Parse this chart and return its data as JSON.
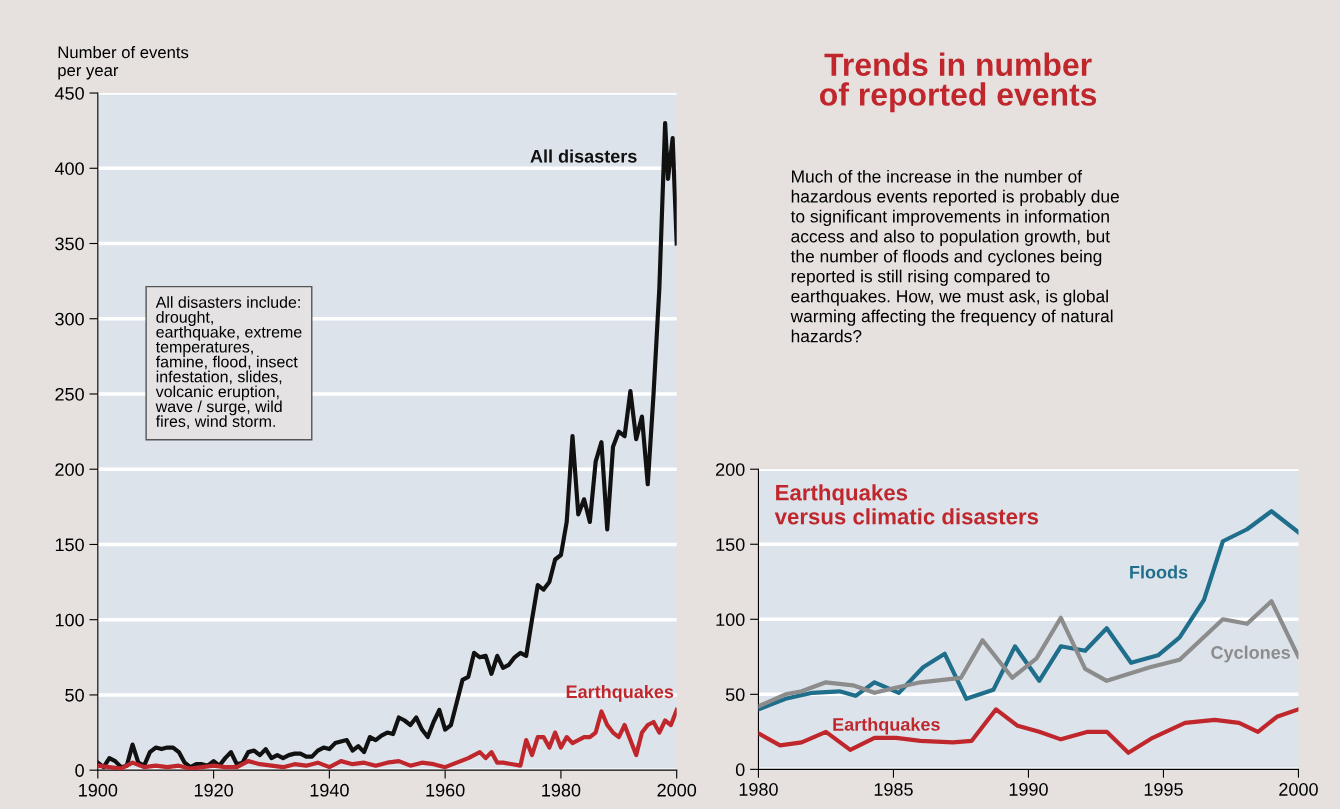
{
  "chart_data": [
    {
      "type": "line",
      "ylabel": "Number of events\nper year",
      "xlim": [
        1900,
        2000
      ],
      "xticks": [
        1900,
        1920,
        1940,
        1960,
        1980,
        2000
      ],
      "ylim": [
        0,
        450
      ],
      "yticks": [
        0,
        50,
        100,
        150,
        200,
        250,
        300,
        350,
        400,
        450
      ],
      "grid": "y",
      "line_style": "solid",
      "marker": "none",
      "annotations": [
        "All disasters include:\ndrought,\nearthquake, extreme\ntemperatures,\nfamine, flood, insect\ninfestation, slides,\nvolcanic eruption,\nwave / surge, wild\nfires, wind storm."
      ],
      "series": [
        {
          "name": "All disasters",
          "color": "#111111",
          "x": [
            1900,
            1901,
            1902,
            1903,
            1904,
            1905,
            1906,
            1907,
            1908,
            1909,
            1910,
            1911,
            1912,
            1913,
            1914,
            1915,
            1916,
            1917,
            1918,
            1919,
            1920,
            1921,
            1922,
            1923,
            1924,
            1925,
            1926,
            1927,
            1928,
            1929,
            1930,
            1931,
            1932,
            1933,
            1934,
            1935,
            1936,
            1937,
            1938,
            1939,
            1940,
            1941,
            1942,
            1943,
            1944,
            1945,
            1946,
            1947,
            1948,
            1949,
            1950,
            1951,
            1952,
            1953,
            1954,
            1955,
            1956,
            1957,
            1958,
            1959,
            1960,
            1961,
            1962,
            1963,
            1964,
            1965,
            1966,
            1967,
            1968,
            1969,
            1970,
            1971,
            1972,
            1973,
            1974,
            1975,
            1976,
            1977,
            1978,
            1979,
            1980,
            1981,
            1982,
            1983,
            1984,
            1985,
            1986,
            1987,
            1988,
            1989,
            1990,
            1991,
            1992,
            1993,
            1994,
            1995,
            1996,
            1997,
            1998,
            1998.5,
            1999.3,
            2000
          ],
          "values": [
            5,
            2,
            8,
            6,
            2,
            3,
            17,
            5,
            3,
            12,
            15,
            14,
            15,
            15,
            12,
            5,
            2,
            4,
            4,
            3,
            6,
            3,
            8,
            12,
            4,
            5,
            12,
            13,
            10,
            14,
            8,
            10,
            8,
            10,
            11,
            11,
            9,
            9,
            13,
            15,
            14,
            18,
            19,
            20,
            13,
            16,
            12,
            22,
            20,
            23,
            25,
            24,
            35,
            33,
            30,
            35,
            27,
            22,
            32,
            40,
            27,
            30,
            45,
            60,
            62,
            78,
            75,
            76,
            64,
            76,
            68,
            70,
            75,
            78,
            76,
            100,
            123,
            120,
            125,
            140,
            143,
            165,
            222,
            170,
            180,
            165,
            205,
            218,
            160,
            215,
            225,
            222,
            252,
            220,
            235,
            190,
            250,
            320,
            430,
            393,
            420,
            350
          ]
        },
        {
          "name": "Earthquakes",
          "color": "#c0272d",
          "x": [
            1900,
            1902,
            1904,
            1906,
            1908,
            1910,
            1912,
            1914,
            1916,
            1918,
            1920,
            1922,
            1924,
            1926,
            1928,
            1930,
            1932,
            1934,
            1936,
            1938,
            1940,
            1942,
            1944,
            1946,
            1948,
            1950,
            1952,
            1954,
            1956,
            1958,
            1960,
            1962,
            1964,
            1966,
            1967,
            1968,
            1969,
            1970,
            1973,
            1974,
            1975,
            1976,
            1977,
            1978,
            1979,
            1980,
            1981,
            1982,
            1983,
            1984,
            1985,
            1986,
            1987,
            1988,
            1989,
            1990,
            1991,
            1992,
            1993,
            1994,
            1995,
            1996,
            1997,
            1998,
            1999,
            2000
          ],
          "values": [
            3,
            2,
            1,
            5,
            2,
            3,
            2,
            3,
            1,
            2,
            3,
            2,
            2,
            6,
            4,
            3,
            2,
            4,
            3,
            5,
            2,
            6,
            4,
            5,
            3,
            5,
            6,
            3,
            5,
            4,
            2,
            5,
            8,
            12,
            8,
            12,
            5,
            5,
            3,
            20,
            10,
            22,
            22,
            15,
            25,
            15,
            22,
            18,
            20,
            22,
            22,
            25,
            39,
            30,
            25,
            22,
            30,
            20,
            10,
            25,
            30,
            32,
            25,
            33,
            30,
            40
          ]
        }
      ]
    },
    {
      "type": "line",
      "title": "Trends in number\nof reported events",
      "subtitle": "Much of the increase in the number of\nhazardous events reported is probably due\nto significant improvements in information\naccess and also to population growth, but\nthe number of floods and cyclones being\nreported is still rising compared to\nearthquakes. How, we must ask, is global\nwarming affecting the frequency of natural\nhazards?",
      "xlim": [
        1980,
        2000
      ],
      "xticks": [
        1980,
        1985,
        1990,
        1995,
        2000
      ],
      "ylim": [
        0,
        200
      ],
      "yticks": [
        0,
        50,
        100,
        150,
        200
      ],
      "grid": "y",
      "line_style": "solid",
      "marker": "none",
      "annotations": [
        "Earthquakes\nversus climatic disasters"
      ],
      "series": [
        {
          "name": "Floods",
          "color": "#1f6e8c",
          "x": [
            1980,
            1981,
            1982,
            1983,
            1983.6,
            1984.3,
            1985.2,
            1986.1,
            1986.9,
            1987.7,
            1988.7,
            1989.5,
            1990.4,
            1991.2,
            1992.1,
            1992.9,
            1993.8,
            1994.8,
            1995.6,
            1996.5,
            1997.2,
            1998.1,
            1999,
            2000
          ],
          "values": [
            40,
            47,
            51,
            52,
            49,
            58,
            51,
            68,
            77,
            47,
            53,
            82,
            59,
            82,
            79,
            94,
            71,
            76,
            88,
            113,
            152,
            160,
            172,
            158
          ]
        },
        {
          "name": "Cyclones",
          "color": "#8c8c8c",
          "x": [
            1980,
            1981,
            1981.6,
            1982.5,
            1983.5,
            1984.3,
            1985,
            1986,
            1987.5,
            1988.3,
            1989.4,
            1990.3,
            1991.2,
            1992.1,
            1992.9,
            1994.5,
            1995.6,
            1997.2,
            1998.1,
            1999,
            2000
          ],
          "values": [
            42,
            50,
            52,
            58,
            56,
            51,
            54,
            58,
            61,
            86,
            61,
            74,
            101,
            67,
            59,
            68,
            73,
            100,
            97,
            112,
            75
          ]
        },
        {
          "name": "Earthquakes",
          "color": "#c0272d",
          "x": [
            1980,
            1980.8,
            1981.6,
            1982.5,
            1983.4,
            1984.3,
            1985.1,
            1986,
            1987.2,
            1987.9,
            1988.8,
            1989.6,
            1990.4,
            1991.2,
            1992.2,
            1992.9,
            1993.7,
            1994.6,
            1995.8,
            1996.9,
            1997.8,
            1998.5,
            1999.2,
            2000
          ],
          "values": [
            24,
            16,
            18,
            25,
            13,
            21,
            21,
            19,
            18,
            19,
            40,
            29,
            25,
            20,
            25,
            25,
            11,
            21,
            31,
            33,
            31,
            25,
            35,
            40
          ]
        }
      ]
    }
  ]
}
